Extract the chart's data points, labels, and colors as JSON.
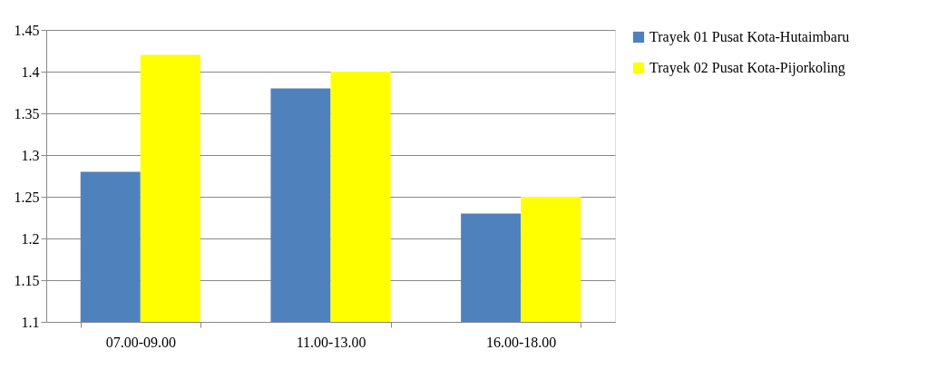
{
  "chart_data": {
    "type": "bar",
    "categories": [
      "07.00-09.00",
      "11.00-13.00",
      "16.00-18.00",
      null
    ],
    "series": [
      {
        "name": "Trayek 01 Pusat Kota-Hutaimbaru",
        "color": "#4f81bd",
        "values": [
          1.28,
          1.38,
          1.23,
          null
        ]
      },
      {
        "name": "Trayek 02 Pusat Kota-Pijorkoling",
        "color": "#ffff00",
        "values": [
          1.42,
          1.4,
          1.25,
          null
        ]
      }
    ],
    "ylim": [
      1.1,
      1.45
    ],
    "yticks": [
      1.1,
      1.15,
      1.2,
      1.25,
      1.3,
      1.35,
      1.4,
      1.45
    ],
    "grid": "y",
    "legend": "right"
  }
}
